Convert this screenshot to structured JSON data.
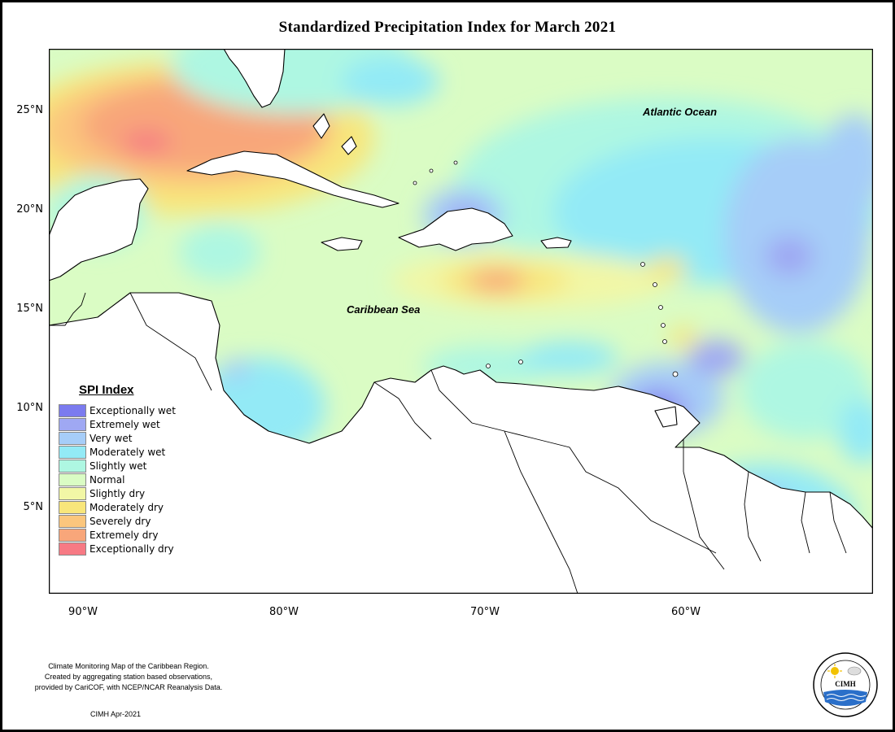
{
  "title": "Standardized Precipitation Index for March 2021",
  "lat_labels": [
    "25°N",
    "20°N",
    "15°N",
    "10°N",
    "5°N"
  ],
  "lon_labels": [
    "90°W",
    "80°W",
    "70°W",
    "60°W"
  ],
  "ocean_labels": {
    "atlantic": "Atlantic Ocean",
    "caribbean": "Caribbean Sea"
  },
  "legend": {
    "title": "SPI Index",
    "items": [
      {
        "label": "Exceptionally wet",
        "color": "#7b7bef"
      },
      {
        "label": "Extremely wet",
        "color": "#9fa8f3"
      },
      {
        "label": "Very wet",
        "color": "#a6cdf8"
      },
      {
        "label": "Moderately wet",
        "color": "#93eaf6"
      },
      {
        "label": "Slightly wet",
        "color": "#aef7e2"
      },
      {
        "label": "Normal",
        "color": "#dafcc4"
      },
      {
        "label": "Slightly dry",
        "color": "#f2f7a6"
      },
      {
        "label": "Moderately dry",
        "color": "#f8e67b"
      },
      {
        "label": "Severely dry",
        "color": "#fbc67d"
      },
      {
        "label": "Extremely dry",
        "color": "#f8a67a"
      },
      {
        "label": "Exceptionally dry",
        "color": "#f77a84"
      }
    ]
  },
  "credits": {
    "line1": "Climate Monitoring Map of the Caribbean Region.",
    "line2": "Created by aggregating station based observations,",
    "line3": "provided by CariCOF, with NCEP/NCAR Reanalysis Data."
  },
  "stamp": "CIMH Apr-2021",
  "logo": {
    "text": "CIMH"
  }
}
